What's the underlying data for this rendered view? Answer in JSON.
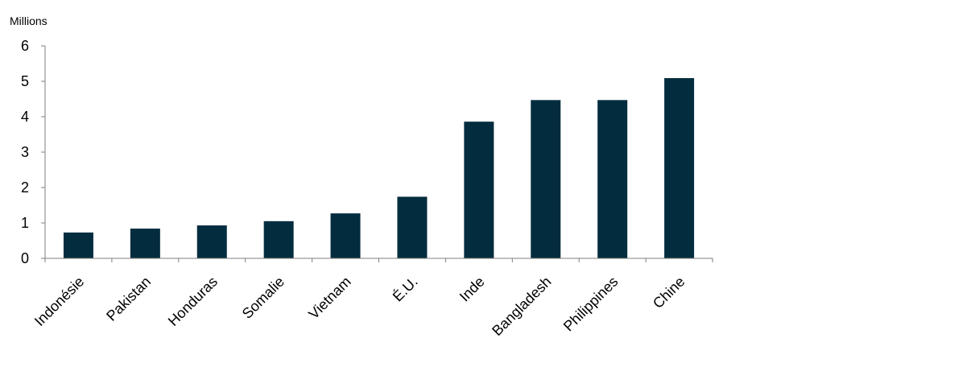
{
  "chart_data": {
    "type": "bar",
    "title": "",
    "xlabel": "",
    "ylabel": "Millions",
    "categories": [
      "Indonésie",
      "Pakistan",
      "Honduras",
      "Somalie",
      "Vietnam",
      "É.U.",
      "Inde",
      "Bangladesh",
      "Philippines",
      "Chine"
    ],
    "values": [
      0.73,
      0.84,
      0.93,
      1.05,
      1.27,
      1.74,
      3.86,
      4.47,
      4.47,
      5.09
    ],
    "ylim": [
      0,
      6
    ],
    "yticks": [
      "0",
      "1",
      "2",
      "3",
      "4",
      "5",
      "6"
    ],
    "grid": false,
    "legend": "none",
    "bar_color": "#032D3F",
    "axis_color": "#7F7F7F"
  }
}
